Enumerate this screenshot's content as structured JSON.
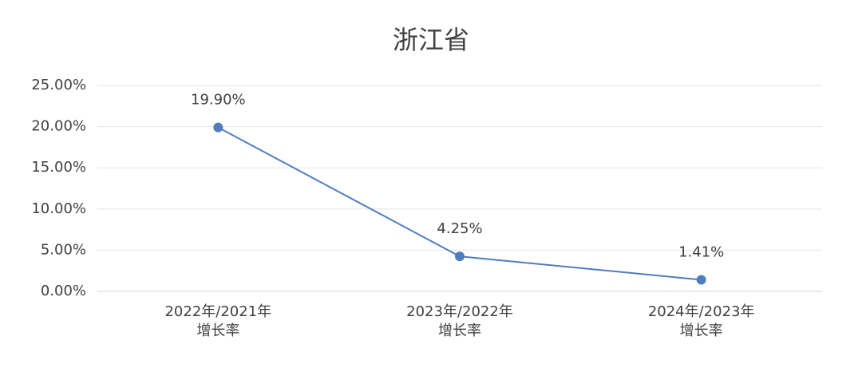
{
  "chart_data": {
    "type": "line",
    "title": "浙江省",
    "categories": [
      "2022年/2021年\n增长率",
      "2023年/2022年\n增长率",
      "2024年/2023年\n增长率"
    ],
    "series": [
      {
        "name": "增长率",
        "color": "#4f7dbd",
        "values": [
          19.9,
          4.25,
          1.41
        ],
        "value_labels": [
          "19.90%",
          "4.25%",
          "1.41%"
        ]
      }
    ],
    "ylim": [
      0,
      25
    ],
    "yticks": [
      {
        "value": 0,
        "label": "0.00%"
      },
      {
        "value": 5,
        "label": "5.00%"
      },
      {
        "value": 10,
        "label": "10.00%"
      },
      {
        "value": 15,
        "label": "15.00%"
      },
      {
        "value": 20,
        "label": "20.00%"
      },
      {
        "value": 25,
        "label": "25.00%"
      }
    ],
    "grid": true
  }
}
